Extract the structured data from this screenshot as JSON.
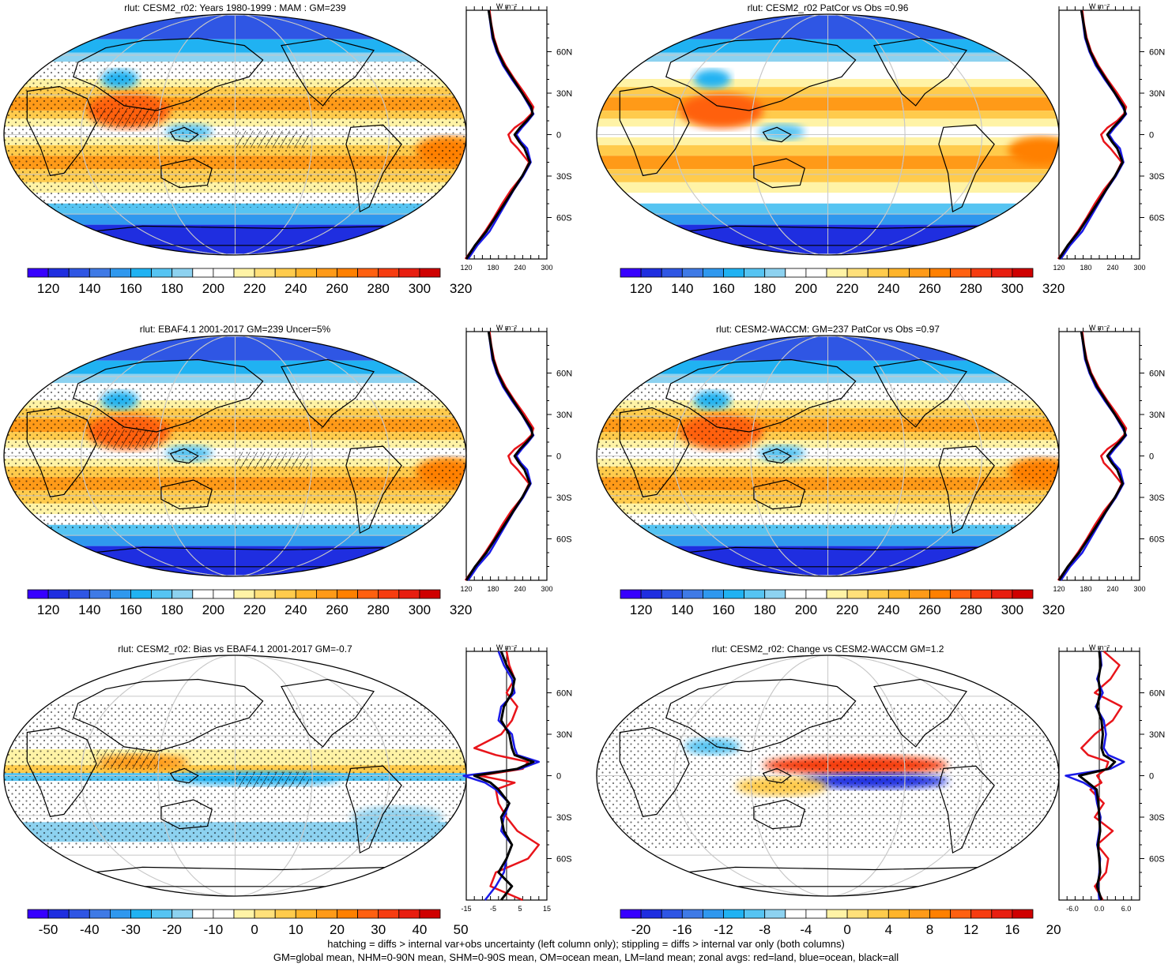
{
  "panels": [
    {
      "title": "rlut: CESM2_r02: Years 1980-1999 : MAM : GM=239",
      "field": "clim",
      "stipple": true,
      "hatch": true
    },
    {
      "title": "rlut: CESM2_r02 PatCor vs Obs =0.96",
      "field": "clim",
      "stipple": false,
      "hatch": false
    },
    {
      "title": "rlut: EBAF4.1 2001-2017 GM=239 Uncer=5%",
      "field": "clim",
      "stipple": true,
      "hatch": true
    },
    {
      "title": "rlut: CESM2-WACCM: GM=237 PatCor vs Obs =0.97",
      "field": "clim",
      "stipple": true,
      "hatch": false
    },
    {
      "title": "rlut: CESM2_r02: Bias vs EBAF4.1 2001-2017 GM=-0.7",
      "field": "bias",
      "stipple": true,
      "hatch": true
    },
    {
      "title": "rlut: CESM2_r02: Change vs CESM2-WACCM GM=1.2",
      "field": "change",
      "stipple": true,
      "hatch": false
    }
  ],
  "colorbars": {
    "clim": [
      "120",
      "140",
      "160",
      "180",
      "200",
      "220",
      "240",
      "260",
      "280",
      "300",
      "320"
    ],
    "bias": [
      "-50",
      "-40",
      "-30",
      "-20",
      "-10",
      "0",
      "10",
      "20",
      "30",
      "40",
      "50"
    ],
    "change": [
      "-20",
      "-16",
      "-12",
      "-8",
      "-4",
      "0",
      "4",
      "8",
      "12",
      "16",
      "20"
    ]
  },
  "colorbar_colors": [
    "#3700ff",
    "#1f2ee0",
    "#2f56e4",
    "#3f7ae6",
    "#2f98ee",
    "#20b2f2",
    "#56c4f2",
    "#8dd2f0",
    "#ffffff",
    "#ffffff",
    "#fff3a6",
    "#ffe07a",
    "#ffcb4c",
    "#ffb42a",
    "#ff9a18",
    "#ff8000",
    "#ff6010",
    "#f63c10",
    "#e81e10",
    "#cf0000"
  ],
  "zonal_axes": {
    "lat_labels": [
      "60N",
      "30N",
      "0",
      "30S",
      "60S"
    ],
    "lat_values": [
      60,
      30,
      0,
      -30,
      -60
    ],
    "unit": "W m⁻²",
    "clim_ticks": [
      "120",
      "180",
      "240",
      "300"
    ],
    "bias_ticks": [
      "-15",
      "-5",
      "5",
      "15"
    ],
    "change_ticks": [
      "-6.0",
      "0.0",
      "6.0"
    ]
  },
  "zonal_legend": {
    "land": "#e8141a",
    "ocean": "#1a1ae8",
    "all": "#000000"
  },
  "footnotes": {
    "line1": "hatching = diffs > internal var+obs uncertainty (left column only); stippling = diffs > internal var only (both columns)",
    "line2": "GM=global mean, NHM=0-90N mean, SHM=0-90S mean, OM=ocean mean, LM=land mean; zonal avgs: red=land, blue=ocean, black=all"
  }
}
